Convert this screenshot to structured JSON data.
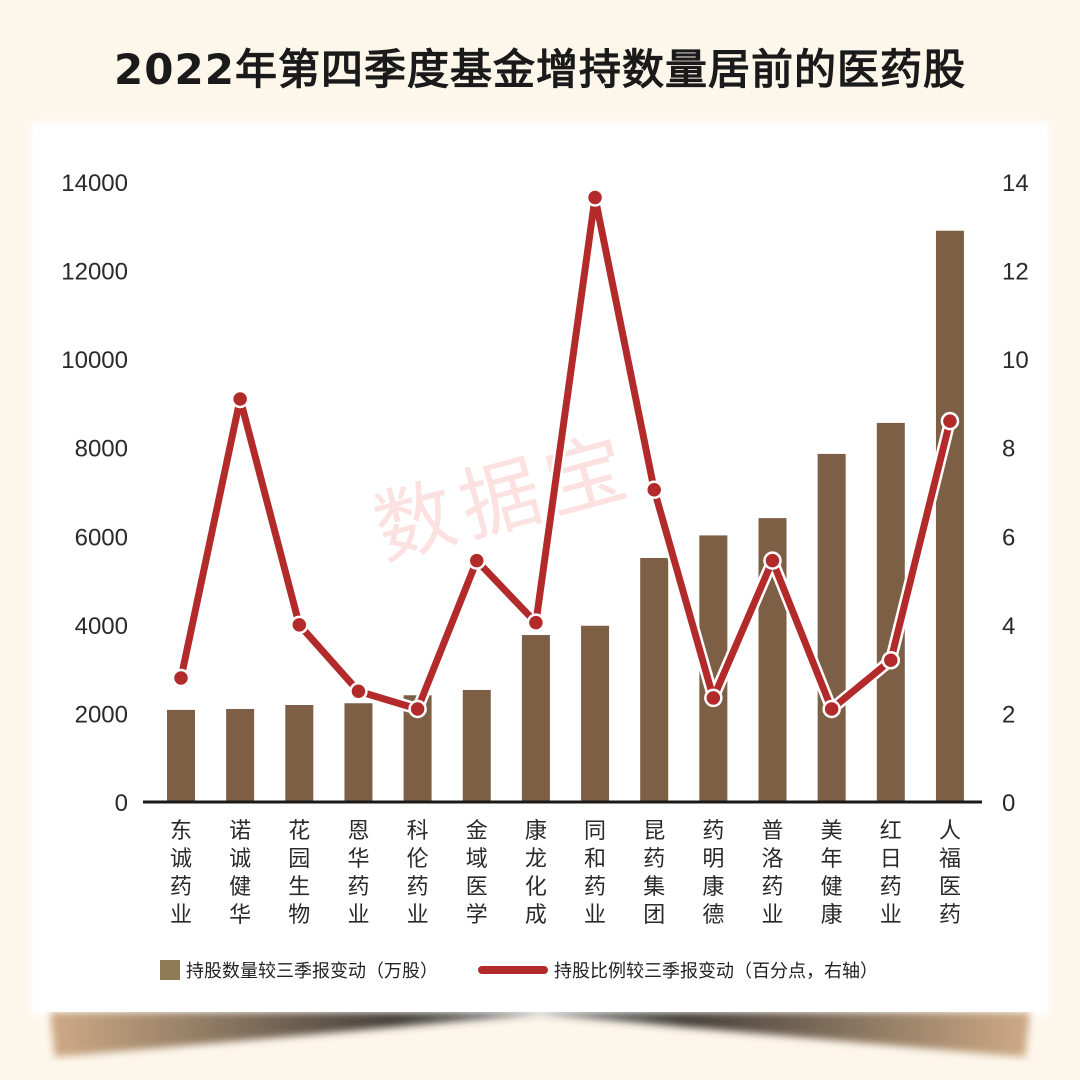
{
  "title": "2022年第四季度基金增持数量居前的医药股",
  "watermark": "数据宝",
  "colors": {
    "bar": "#7d5f45",
    "bar_legend": "#8f7a55",
    "line": "#b22a2a",
    "background": "#fdf6ea",
    "card": "#ffffff"
  },
  "legend": {
    "bar_label": "持股数量较三季报变动（万股）",
    "line_label": "持股比例较三季报变动（百分点，右轴）"
  },
  "left_axis": {
    "ticks": [
      "0",
      "2000",
      "4000",
      "6000",
      "8000",
      "10000",
      "12000",
      "14000"
    ]
  },
  "right_axis": {
    "ticks": [
      "0",
      "2",
      "4",
      "6",
      "8",
      "10",
      "12",
      "14"
    ]
  },
  "chart_data": {
    "type": "bar",
    "title": "2022年第四季度基金增持数量居前的医药股",
    "categories": [
      "东诚药业",
      "诺诚健华",
      "花园生物",
      "恩华药业",
      "科伦药业",
      "金域医学",
      "康龙化成",
      "同和药业",
      "昆药集团",
      "药明康德",
      "普洛药业",
      "美年健康",
      "红日药业",
      "人福医药"
    ],
    "series": [
      {
        "name": "持股数量较三季报变动（万股）",
        "type": "bar",
        "axis": "left",
        "values": [
          2080,
          2100,
          2190,
          2230,
          2410,
          2530,
          3770,
          3980,
          5510,
          6020,
          6410,
          7860,
          8560,
          12900
        ]
      },
      {
        "name": "持股比例较三季报变动（百分点，右轴）",
        "type": "line",
        "axis": "right",
        "values": [
          2.8,
          9.1,
          4.0,
          2.5,
          2.1,
          5.45,
          4.05,
          13.65,
          7.05,
          2.35,
          5.45,
          2.1,
          3.2,
          8.6
        ]
      }
    ],
    "xlabel": "",
    "ylabel": "持股数量较三季报变动（万股）",
    "ylabel_right": "持股比例较三季报变动（百分点）",
    "ylim": [
      0,
      14000
    ],
    "ylim_right": [
      0,
      14
    ],
    "grid": false,
    "legend_position": "bottom"
  }
}
